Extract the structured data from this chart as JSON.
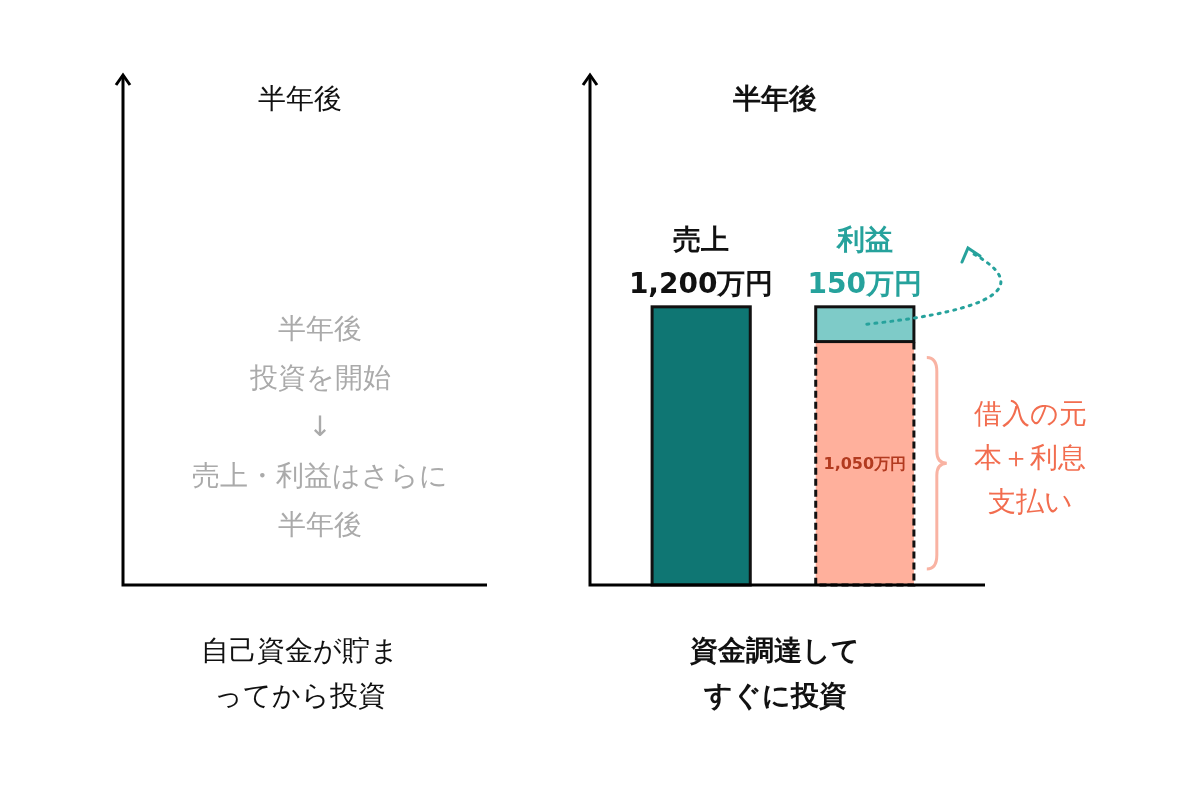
{
  "chart_data": [
    {
      "type": "other",
      "title": "半年後",
      "xlabel": "自己資金が貯まってから投資",
      "annotations": [
        "半年後",
        "投資を開始",
        "↓",
        "売上・利益はさらに",
        "半年後"
      ]
    },
    {
      "type": "bar",
      "title": "半年後",
      "xlabel": "資金調達してすぐに投資",
      "categories": [
        null,
        null
      ],
      "stacked": true,
      "ylim": [
        0,
        2200
      ],
      "tick_labels": false,
      "series": [
        {
          "name": "売上",
          "color": "#0f7673",
          "values": [
            1200,
            null
          ],
          "value_labels": [
            "1,200万円",
            null
          ]
        },
        {
          "name": "借入の元本＋利息支払い",
          "color": "#ffb09c",
          "values": [
            null,
            1050
          ],
          "value_labels": [
            null,
            "1,050万円"
          ],
          "line_style": "dashed"
        },
        {
          "name": "利益",
          "color": "#7ecbc8",
          "values": [
            null,
            150
          ],
          "value_labels": [
            null,
            "150万円"
          ]
        }
      ]
    }
  ]
}
